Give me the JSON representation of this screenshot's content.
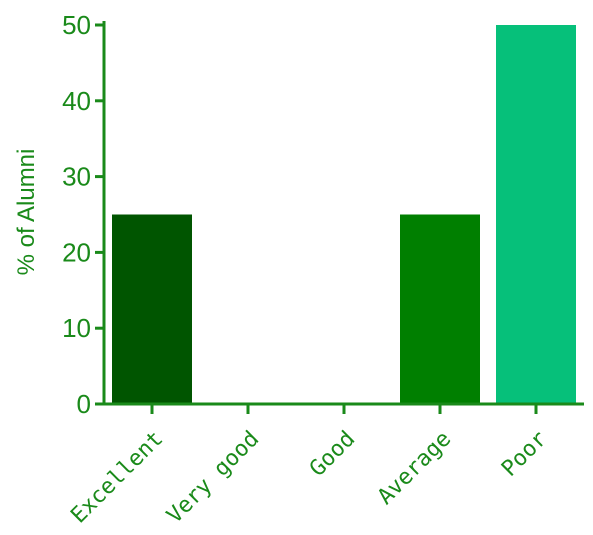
{
  "chart_data": {
    "type": "bar",
    "title": "",
    "xlabel": "",
    "ylabel": "% of Alumni",
    "categories": [
      "Excellent",
      "Very good",
      "Good",
      "Average",
      "Poor"
    ],
    "values": [
      25,
      0,
      0,
      25,
      50
    ],
    "ylim": [
      0,
      50
    ],
    "yticks": [
      0,
      10,
      20,
      30,
      40,
      50
    ],
    "grid": false,
    "legend": "none",
    "bar_colors": [
      "#005500",
      "#0a7a0a",
      "#0a7a0a",
      "#007f00",
      "#06c07a"
    ],
    "axis_color": "#1a8a1a"
  }
}
